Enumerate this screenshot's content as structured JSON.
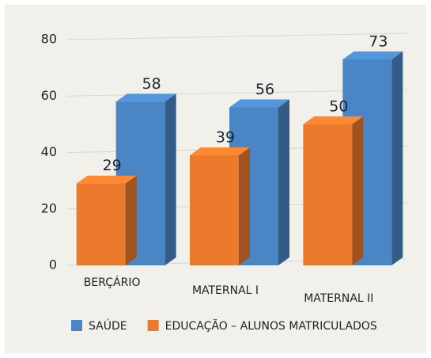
{
  "chart_data": {
    "type": "bar3d",
    "categories": [
      "BERÇÁRIO",
      "MATERNAL I",
      "MATERNAL II"
    ],
    "series": [
      {
        "name": "SAÚDE",
        "color": "#4a86c5",
        "values": [
          58,
          56,
          73
        ]
      },
      {
        "name": "EDUCAÇÃO – ALUNOS MATRICULADOS",
        "color": "#ec7a2c",
        "values": [
          29,
          39,
          50
        ]
      }
    ],
    "ylim": [
      0,
      80
    ],
    "yticks": [
      0,
      20,
      40,
      60,
      80
    ],
    "grid": true,
    "legend": "bottom"
  }
}
